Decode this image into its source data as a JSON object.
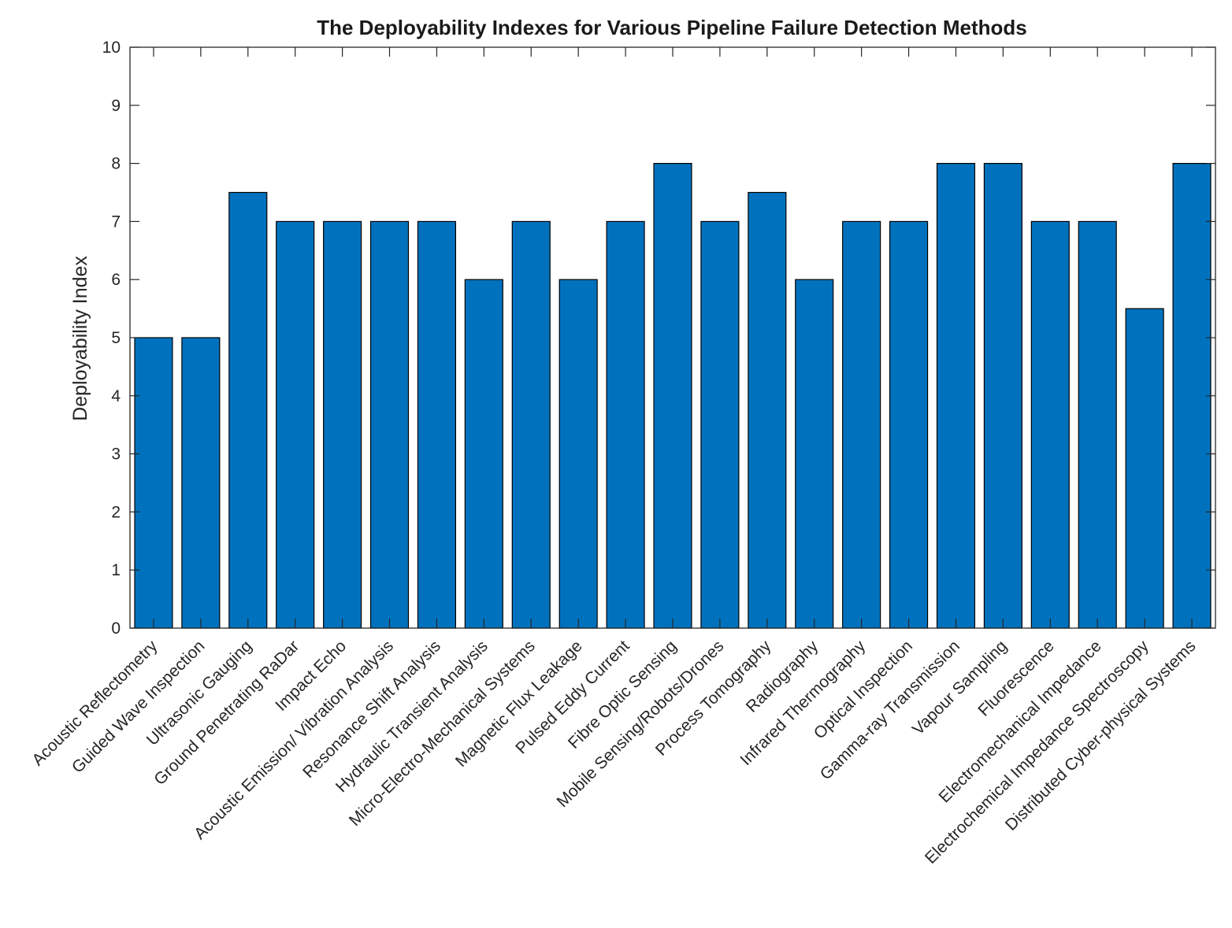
{
  "chart_data": {
    "type": "bar",
    "title": "The Deployability Indexes for Various Pipeline Failure Detection Methods",
    "xlabel": "",
    "ylabel": "Deployability Index",
    "ylim": [
      0,
      10
    ],
    "yticks": [
      "0",
      "1",
      "2",
      "3",
      "4",
      "5",
      "6",
      "7",
      "8",
      "9",
      "10"
    ],
    "grid": false,
    "bar_color": "#0072BD",
    "bar_edge_color": "#000000",
    "categories": [
      "Acoustic Reflectometry",
      "Guided Wave Inspection",
      "Ultrasonic Gauging",
      "Ground Penetrating RaDar",
      "Impact Echo",
      "Acoustic Emission/ Vibration Analysis",
      "Resonance Shift Analysis",
      "Hydraulic Transient Analysis",
      "Micro-Electro-Mechanical Systems",
      "Magnetic Flux Leakage",
      "Pulsed Eddy Current",
      "Fibre Optic Sensing",
      "Mobile Sensing/Robots/Drones",
      "Process Tomography",
      "Radiography",
      "Infrared Thermography",
      "Optical Inspection",
      "Gamma-ray Transmission",
      "Vapour Sampling",
      "Fluorescence",
      "Electromechanical Impedance",
      "Electrochemical Impedance Spectroscopy",
      "Distributed Cyber-physical Systems"
    ],
    "values": [
      5,
      5,
      7.5,
      7,
      7,
      7,
      7,
      6,
      7,
      6,
      7,
      8,
      7,
      7.5,
      6,
      7,
      7,
      8,
      8,
      7,
      7,
      5.5,
      8
    ]
  }
}
